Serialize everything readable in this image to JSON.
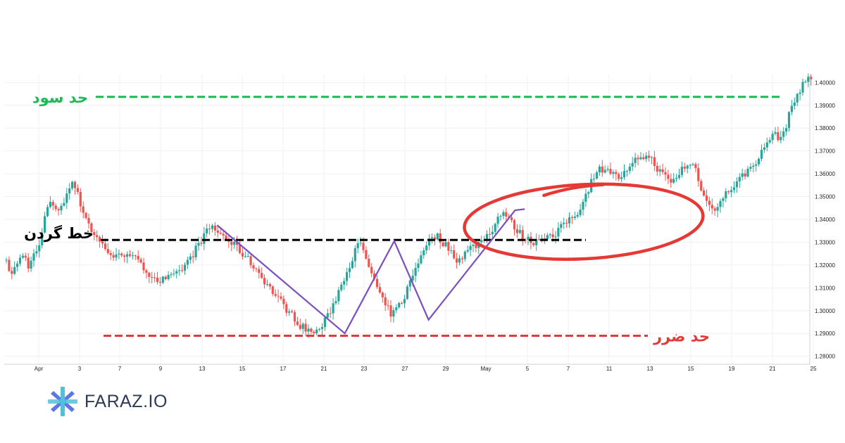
{
  "chart_data": {
    "type": "candlestick",
    "x_ticks": [
      "Apr",
      "3",
      "7",
      "9",
      "13",
      "15",
      "17",
      "21",
      "23",
      "27",
      "29",
      "May",
      "5",
      "7",
      "11",
      "13",
      "15",
      "19",
      "21",
      "25"
    ],
    "y_ticks": [
      "1.28000",
      "1.29000",
      "1.30000",
      "1.31000",
      "1.32000",
      "1.33000",
      "1.34000",
      "1.35000",
      "1.36000",
      "1.37000",
      "1.38000",
      "1.39000",
      "1.40000"
    ],
    "ylim": [
      1.2765,
      1.4035
    ],
    "grid": true,
    "colors": {
      "up": "#26a69a",
      "down": "#ef5350",
      "take_profit": "#1db954",
      "neckline": "#000000",
      "stop_loss": "#e53935",
      "pattern": "#7b4fbf",
      "highlight": "#e53935"
    },
    "keyframes": [
      [
        0,
        1.322
      ],
      [
        5,
        1.316
      ],
      [
        13,
        1.325
      ],
      [
        17,
        1.32
      ],
      [
        25,
        1.328
      ],
      [
        32,
        1.349
      ],
      [
        40,
        1.343
      ],
      [
        49,
        1.358
      ],
      [
        56,
        1.345
      ],
      [
        64,
        1.334
      ],
      [
        72,
        1.328
      ],
      [
        80,
        1.323
      ],
      [
        90,
        1.326
      ],
      [
        100,
        1.319
      ],
      [
        112,
        1.313
      ],
      [
        124,
        1.315
      ],
      [
        134,
        1.322
      ],
      [
        142,
        1.33
      ],
      [
        150,
        1.337
      ],
      [
        158,
        1.333
      ],
      [
        170,
        1.327
      ],
      [
        182,
        1.319
      ],
      [
        194,
        1.309
      ],
      [
        206,
        1.3
      ],
      [
        216,
        1.293
      ],
      [
        226,
        1.29
      ],
      [
        234,
        1.296
      ],
      [
        242,
        1.307
      ],
      [
        250,
        1.319
      ],
      [
        258,
        1.33
      ],
      [
        266,
        1.318
      ],
      [
        274,
        1.305
      ],
      [
        282,
        1.298
      ],
      [
        290,
        1.305
      ],
      [
        298,
        1.317
      ],
      [
        306,
        1.329
      ],
      [
        314,
        1.333
      ],
      [
        322,
        1.328
      ],
      [
        330,
        1.322
      ],
      [
        338,
        1.327
      ],
      [
        346,
        1.33
      ],
      [
        354,
        1.335
      ],
      [
        362,
        1.344
      ],
      [
        368,
        1.339
      ],
      [
        376,
        1.333
      ],
      [
        384,
        1.33
      ],
      [
        392,
        1.333
      ],
      [
        400,
        1.332
      ],
      [
        408,
        1.339
      ],
      [
        416,
        1.342
      ],
      [
        424,
        1.352
      ],
      [
        430,
        1.361
      ],
      [
        438,
        1.363
      ],
      [
        446,
        1.358
      ],
      [
        454,
        1.361
      ],
      [
        462,
        1.368
      ],
      [
        470,
        1.367
      ],
      [
        478,
        1.36
      ],
      [
        486,
        1.356
      ],
      [
        494,
        1.363
      ],
      [
        502,
        1.364
      ],
      [
        510,
        1.348
      ],
      [
        518,
        1.345
      ],
      [
        526,
        1.352
      ],
      [
        534,
        1.357
      ],
      [
        542,
        1.362
      ],
      [
        550,
        1.368
      ],
      [
        558,
        1.377
      ],
      [
        566,
        1.376
      ],
      [
        574,
        1.391
      ],
      [
        582,
        1.401
      ],
      [
        588,
        1.401
      ]
    ],
    "annotations": {
      "take_profit": {
        "label": "حد سود",
        "value": 1.3937
      },
      "neckline": {
        "label": "خط گردن",
        "value": 1.331
      },
      "stop_loss": {
        "label": "حد ضرر",
        "value": 1.289
      }
    },
    "pattern_lines": [
      [
        [
          154,
          1.3375
        ],
        [
          247,
          1.29
        ],
        [
          283,
          1.3305
        ],
        [
          308,
          1.296
        ],
        [
          371,
          1.344
        ],
        [
          378,
          1.3445
        ]
      ]
    ],
    "highlight_ellipse": {
      "cx": 421,
      "cy": 1.339,
      "rx": 87,
      "ry": 0.0163
    },
    "highlight_arc": [
      [
        392,
        1.3505
      ],
      [
        412,
        1.3545
      ],
      [
        435,
        1.3552
      ]
    ]
  },
  "brand": {
    "name": "FARAZ.IO",
    "logo_icon": "asterisk-x-icon",
    "logo_colors": [
      "#5a76e8",
      "#52c0d8"
    ]
  }
}
